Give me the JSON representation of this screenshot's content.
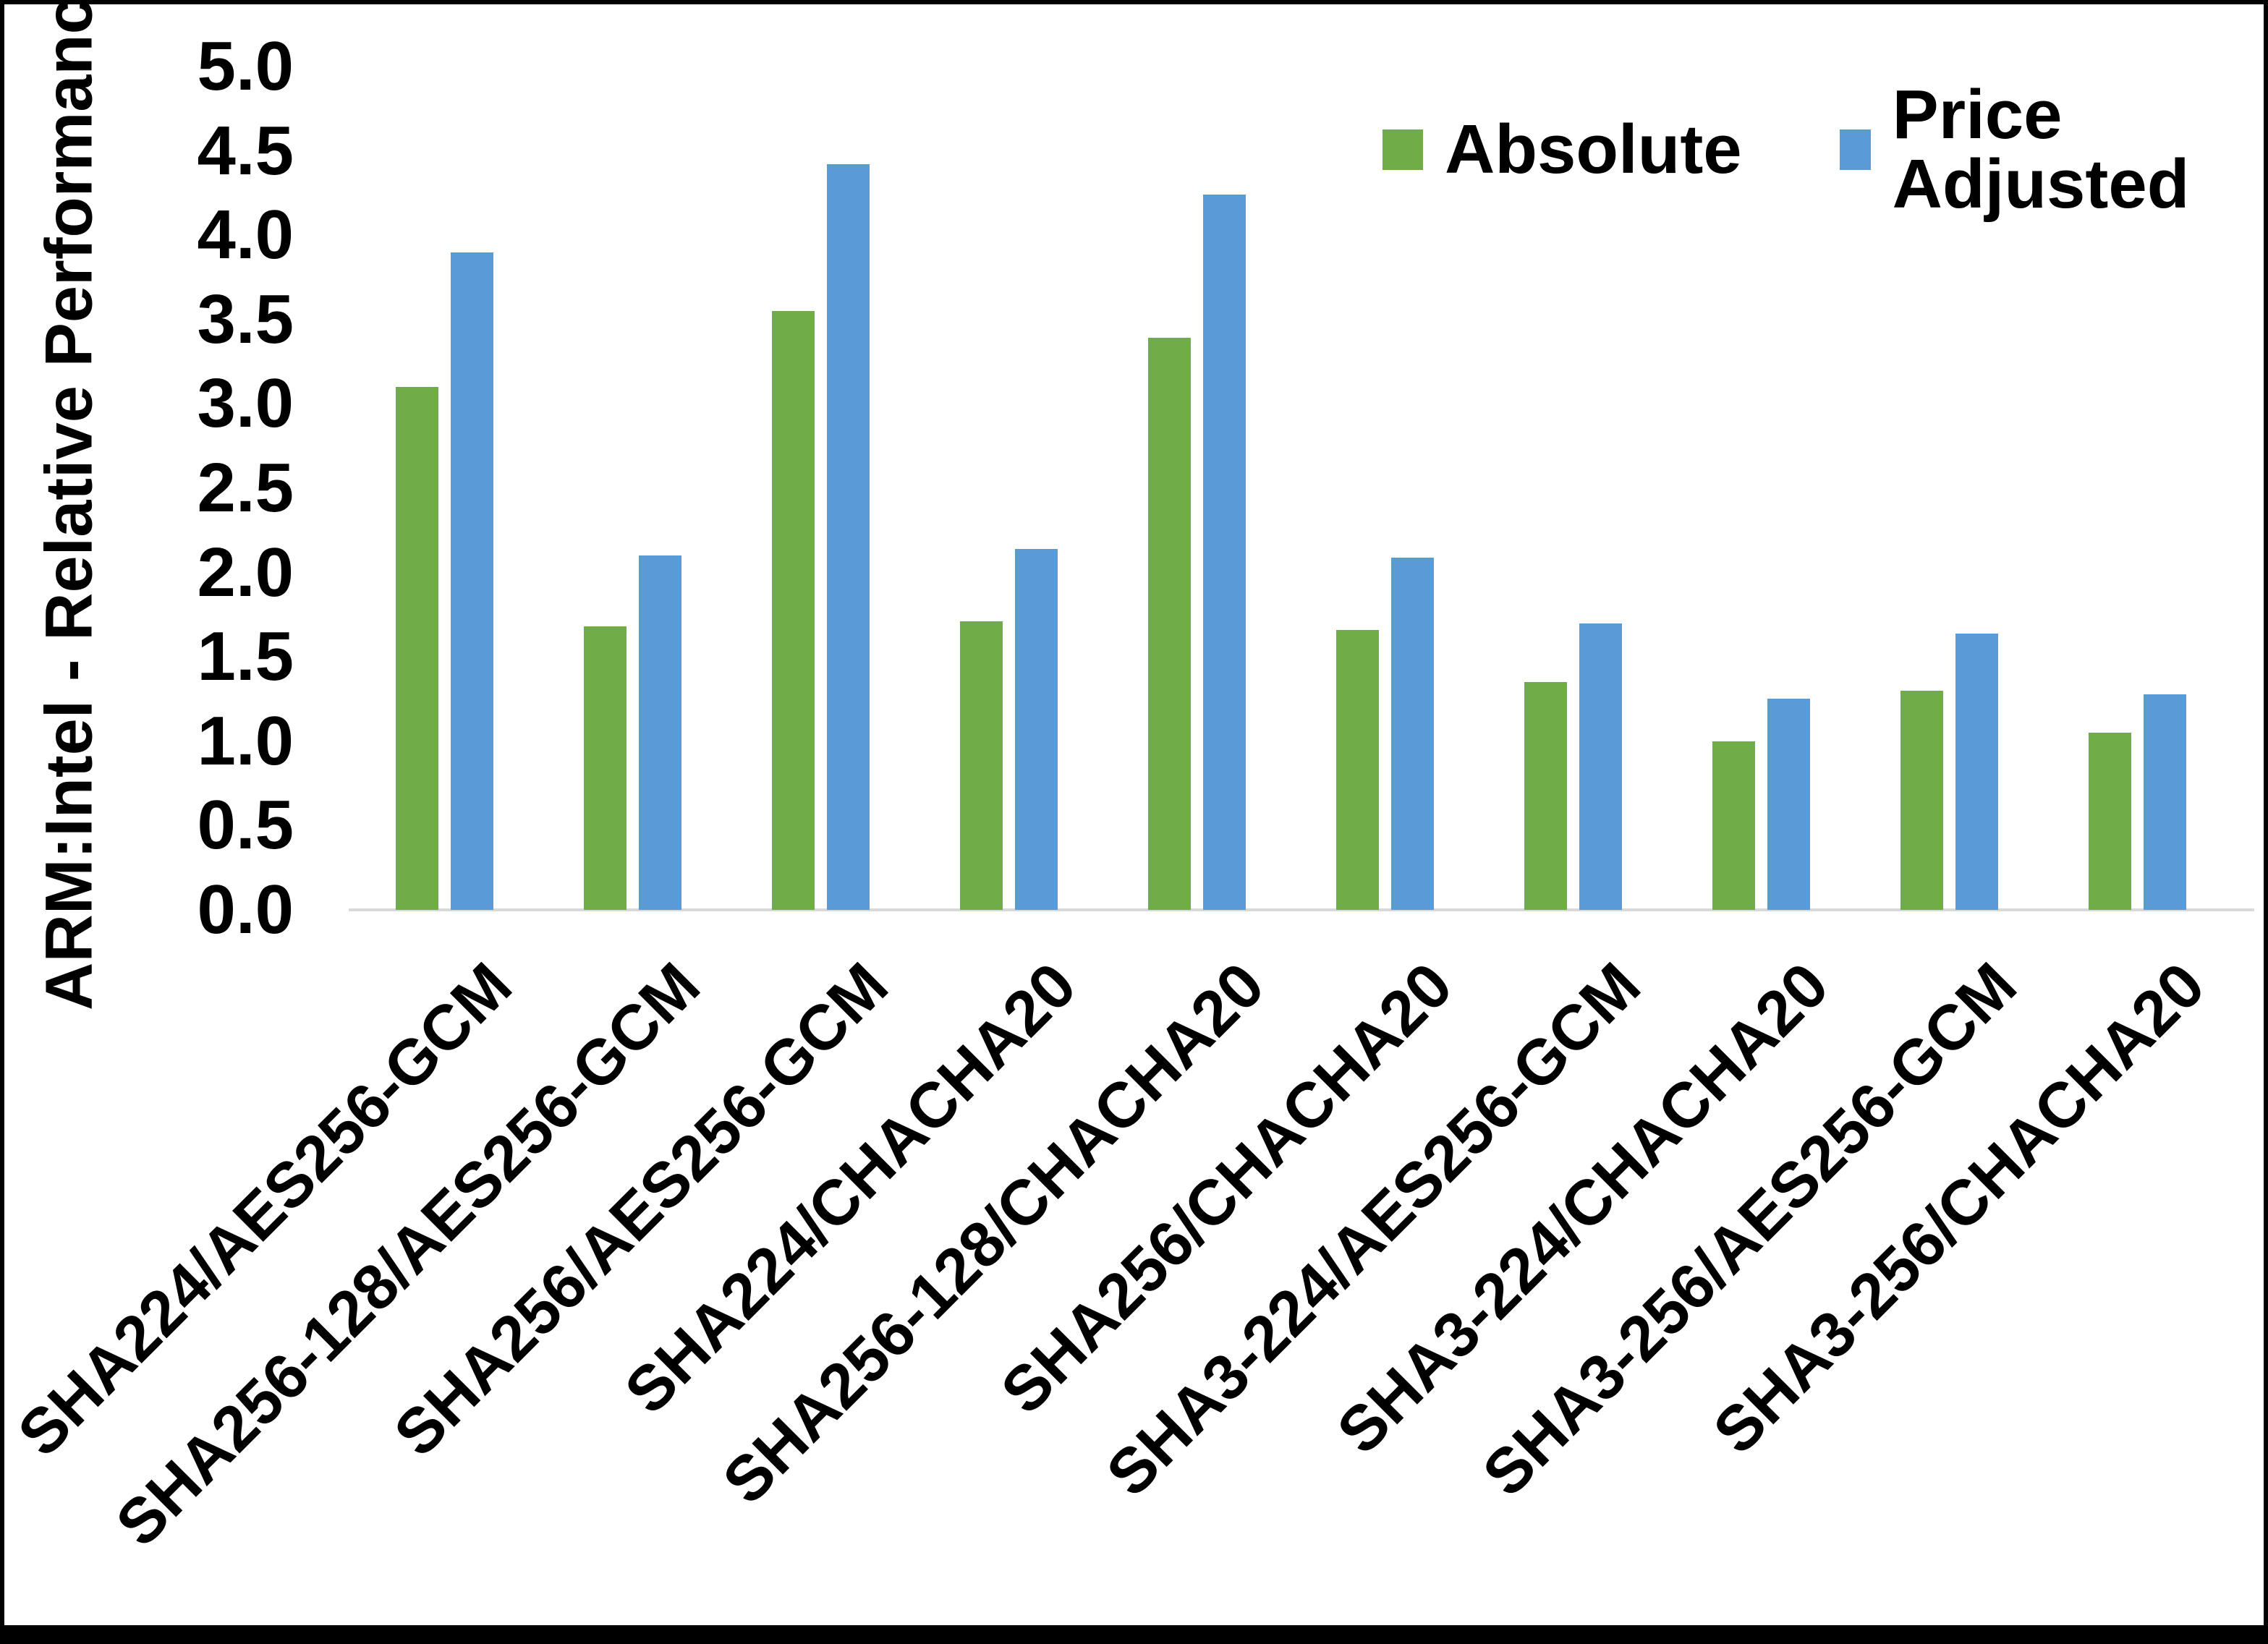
{
  "figure": {
    "background": "#ffffff",
    "border_color": "#000000",
    "axis_line_color": "#d9d9d9"
  },
  "legend": [
    {
      "label": "Absolute",
      "color": "#70AD47"
    },
    {
      "label": "Price Adjusted",
      "color": "#5B9BD5"
    }
  ],
  "chart_data": {
    "type": "bar",
    "title": "",
    "xlabel": "",
    "ylabel": "ARM:Intel - Relative Performance",
    "ylim": [
      0,
      5
    ],
    "yticks": [
      "0.0",
      "0.5",
      "1.0",
      "1.5",
      "2.0",
      "2.5",
      "3.0",
      "3.5",
      "4.0",
      "4.5",
      "5.0"
    ],
    "grid": false,
    "legend_position": "top-right",
    "categories": [
      "SHA224/AES256-GCM",
      "SHA256-128/AES256-GCM",
      "SHA256/AES256-GCM",
      "SHA224/CHACHA20",
      "SHA256-128/CHACHA20",
      "SHA256/CHACHA20",
      "SHA3-224/AES256-GCM",
      "SHA3-224/CHACHA20",
      "SHA3-256/AES256-GCM",
      "SHA3-256/CHACHA20"
    ],
    "series": [
      {
        "name": "Absolute",
        "color": "#70AD47",
        "values": [
          3.1,
          1.68,
          3.55,
          1.71,
          3.39,
          1.66,
          1.35,
          1.0,
          1.3,
          1.05
        ]
      },
      {
        "name": "Price Adjusted",
        "color": "#5B9BD5",
        "values": [
          3.9,
          2.1,
          4.42,
          2.14,
          4.24,
          2.09,
          1.7,
          1.25,
          1.64,
          1.28
        ]
      }
    ]
  }
}
